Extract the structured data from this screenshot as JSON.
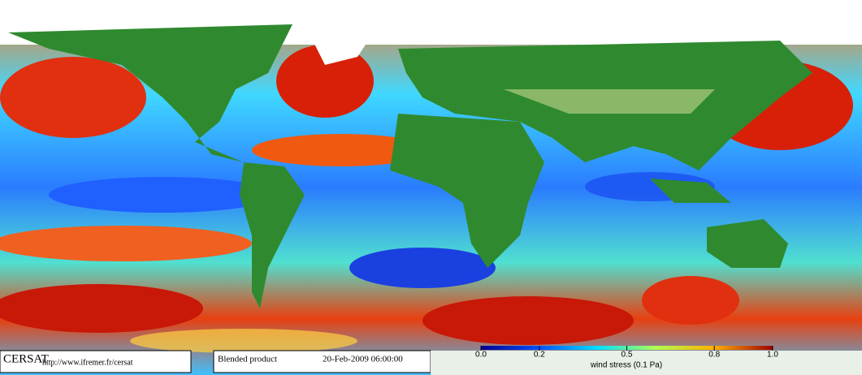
{
  "footer": {
    "logo": "CERSAT",
    "url": "http://www.ifremer.fr/cersat",
    "product": "Blended product",
    "date": "20-Feb-2009 06:00:00"
  },
  "colorbar": {
    "label": "wind stress (0.1 Pa)",
    "range": [
      0,
      1
    ],
    "ticks": [
      {
        "value": 0,
        "label": "0.0"
      },
      0.2,
      0.5,
      0.8,
      {
        "value": 1,
        "label": "1.0"
      }
    ]
  }
}
